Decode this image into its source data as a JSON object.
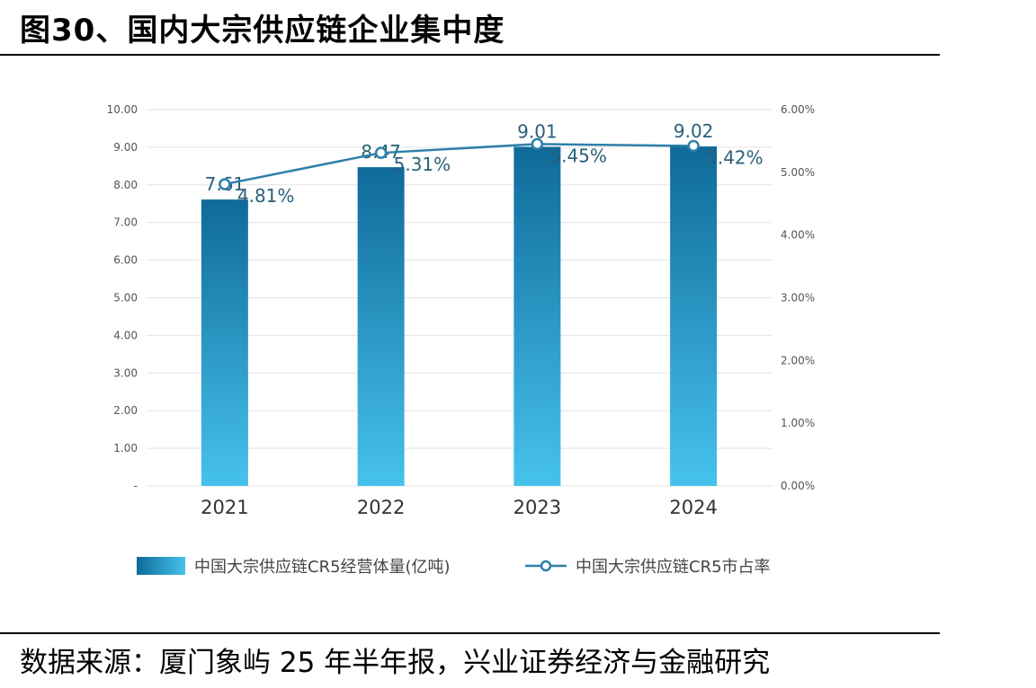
{
  "title": "图30、国内大宗供应链企业集中度",
  "source": "数据来源：厦门象屿 25 年半年报，兴业证券经济与金融研究",
  "chart_data": {
    "type": "bar",
    "categories": [
      "2021",
      "2022",
      "2023",
      "2024"
    ],
    "series": [
      {
        "name": "中国大宗供应链CR5经营体量(亿吨)",
        "type": "bar",
        "axis": "left",
        "values": [
          7.61,
          8.47,
          9.01,
          9.02
        ],
        "labels": [
          "7.61",
          "8.47",
          "9.01",
          "9.02"
        ]
      },
      {
        "name": "中国大宗供应链CR5市占率",
        "type": "line",
        "axis": "right",
        "values": [
          4.81,
          5.31,
          5.45,
          5.42
        ],
        "labels": [
          "4.81%",
          "5.31%",
          "5.45%",
          "5.42%"
        ]
      }
    ],
    "y_left": {
      "ylim": [
        0,
        10
      ],
      "ticks": [
        "-",
        "1.00",
        "2.00",
        "3.00",
        "4.00",
        "5.00",
        "6.00",
        "7.00",
        "8.00",
        "9.00",
        "10.00"
      ]
    },
    "y_right": {
      "ylim": [
        0,
        6
      ],
      "ticks": [
        "0.00%",
        "1.00%",
        "2.00%",
        "3.00%",
        "4.00%",
        "5.00%",
        "6.00%"
      ]
    },
    "grid": true,
    "legend": "bottom",
    "colors": {
      "bar_top": "#0f6a9a",
      "bar_bottom": "#46c2ec",
      "line": "#2e7fa8"
    }
  }
}
